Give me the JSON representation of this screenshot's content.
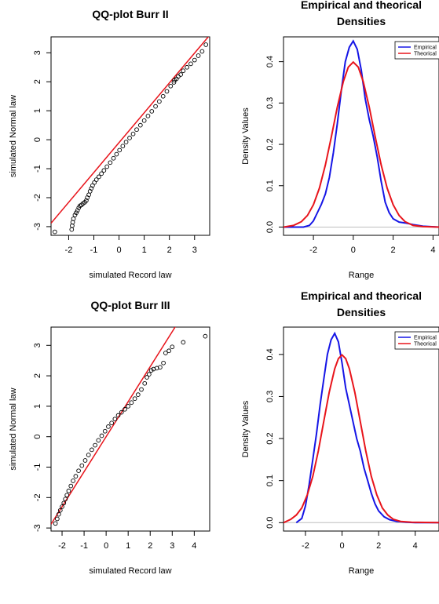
{
  "chart_data": [
    {
      "type": "scatter",
      "title": "QQ-plot Burr II",
      "xlabel": "simulated Record law",
      "ylabel": "simulated Normal law",
      "xlim": [
        -2.7,
        3.6
      ],
      "ylim": [
        -3.3,
        3.55
      ],
      "xticks": [
        -2,
        -1,
        0,
        1,
        2,
        3
      ],
      "yticks": [
        -3,
        -2,
        -1,
        0,
        1,
        2,
        3
      ],
      "reference_line": {
        "intercept": -0.1,
        "slope": 1.03,
        "color": "#e8141b"
      },
      "points": [
        [
          -2.55,
          -3.18
        ],
        [
          -1.88,
          -3.1
        ],
        [
          -1.86,
          -2.97
        ],
        [
          -1.84,
          -2.85
        ],
        [
          -1.81,
          -2.73
        ],
        [
          -1.75,
          -2.6
        ],
        [
          -1.7,
          -2.52
        ],
        [
          -1.65,
          -2.44
        ],
        [
          -1.6,
          -2.35
        ],
        [
          -1.55,
          -2.28
        ],
        [
          -1.49,
          -2.25
        ],
        [
          -1.43,
          -2.2
        ],
        [
          -1.36,
          -2.16
        ],
        [
          -1.3,
          -2.1
        ],
        [
          -1.26,
          -2.0
        ],
        [
          -1.2,
          -1.9
        ],
        [
          -1.15,
          -1.78
        ],
        [
          -1.1,
          -1.68
        ],
        [
          -1.05,
          -1.58
        ],
        [
          -0.98,
          -1.48
        ],
        [
          -0.9,
          -1.38
        ],
        [
          -0.8,
          -1.28
        ],
        [
          -0.7,
          -1.17
        ],
        [
          -0.6,
          -1.06
        ],
        [
          -0.48,
          -0.93
        ],
        [
          -0.35,
          -0.79
        ],
        [
          -0.22,
          -0.64
        ],
        [
          -0.1,
          -0.5
        ],
        [
          0.02,
          -0.36
        ],
        [
          0.15,
          -0.22
        ],
        [
          0.28,
          -0.08
        ],
        [
          0.42,
          0.06
        ],
        [
          0.56,
          0.2
        ],
        [
          0.7,
          0.35
        ],
        [
          0.85,
          0.5
        ],
        [
          1.0,
          0.66
        ],
        [
          1.15,
          0.82
        ],
        [
          1.3,
          0.98
        ],
        [
          1.45,
          1.15
        ],
        [
          1.6,
          1.32
        ],
        [
          1.75,
          1.5
        ],
        [
          1.9,
          1.67
        ],
        [
          2.05,
          1.85
        ],
        [
          2.18,
          1.98
        ],
        [
          2.2,
          2.05
        ],
        [
          2.28,
          2.1
        ],
        [
          2.35,
          2.18
        ],
        [
          2.45,
          2.25
        ],
        [
          2.55,
          2.38
        ],
        [
          2.7,
          2.5
        ],
        [
          2.85,
          2.62
        ],
        [
          3.0,
          2.75
        ],
        [
          3.15,
          2.9
        ],
        [
          3.3,
          3.05
        ],
        [
          3.45,
          3.28
        ]
      ]
    },
    {
      "type": "line",
      "title": "Empirical and theorical\nDensities",
      "xlabel": "Range",
      "ylabel": "Density Values",
      "xlim": [
        -3.5,
        4.3
      ],
      "ylim": [
        -0.02,
        0.46
      ],
      "xticks": [
        -2,
        0,
        2,
        4
      ],
      "yticks": [
        0.0,
        0.1,
        0.2,
        0.3,
        0.4
      ],
      "legend": {
        "position": "top-right"
      },
      "series": [
        {
          "name": "Empirical",
          "color": "#1515e6",
          "points": [
            [
              -3.5,
              0.0
            ],
            [
              -2.5,
              0.0
            ],
            [
              -2.2,
              0.004
            ],
            [
              -2.0,
              0.015
            ],
            [
              -1.8,
              0.035
            ],
            [
              -1.6,
              0.055
            ],
            [
              -1.4,
              0.08
            ],
            [
              -1.2,
              0.12
            ],
            [
              -1.0,
              0.18
            ],
            [
              -0.8,
              0.25
            ],
            [
              -0.6,
              0.33
            ],
            [
              -0.4,
              0.4
            ],
            [
              -0.2,
              0.435
            ],
            [
              0.0,
              0.45
            ],
            [
              0.2,
              0.43
            ],
            [
              0.4,
              0.38
            ],
            [
              0.6,
              0.31
            ],
            [
              0.8,
              0.26
            ],
            [
              1.0,
              0.22
            ],
            [
              1.2,
              0.17
            ],
            [
              1.4,
              0.11
            ],
            [
              1.6,
              0.06
            ],
            [
              1.8,
              0.035
            ],
            [
              2.0,
              0.02
            ],
            [
              2.3,
              0.012
            ],
            [
              2.6,
              0.01
            ],
            [
              3.0,
              0.006
            ],
            [
              3.5,
              0.002
            ],
            [
              4.3,
              0.0
            ]
          ]
        },
        {
          "name": "Theorical",
          "color": "#e8141b",
          "points": [
            [
              -3.5,
              0.0
            ],
            [
              -3.0,
              0.004
            ],
            [
              -2.6,
              0.013
            ],
            [
              -2.3,
              0.028
            ],
            [
              -2.0,
              0.054
            ],
            [
              -1.7,
              0.094
            ],
            [
              -1.4,
              0.15
            ],
            [
              -1.1,
              0.218
            ],
            [
              -0.8,
              0.29
            ],
            [
              -0.5,
              0.352
            ],
            [
              -0.25,
              0.387
            ],
            [
              0.0,
              0.399
            ],
            [
              0.25,
              0.387
            ],
            [
              0.5,
              0.352
            ],
            [
              0.8,
              0.29
            ],
            [
              1.1,
              0.218
            ],
            [
              1.4,
              0.15
            ],
            [
              1.7,
              0.094
            ],
            [
              2.0,
              0.054
            ],
            [
              2.3,
              0.028
            ],
            [
              2.6,
              0.013
            ],
            [
              3.0,
              0.004
            ],
            [
              3.5,
              0.001
            ],
            [
              4.3,
              0.0
            ]
          ]
        }
      ]
    },
    {
      "type": "scatter",
      "title": "QQ-plot Burr III",
      "xlabel": "simulated Record law",
      "ylabel": "simulated Normal law",
      "xlim": [
        -2.5,
        4.7
      ],
      "ylim": [
        -3.1,
        3.6
      ],
      "xticks": [
        -2,
        -1,
        0,
        1,
        2,
        3,
        4
      ],
      "yticks": [
        -3,
        -2,
        -1,
        0,
        1,
        2,
        3
      ],
      "reference_line": {
        "intercept": 0.0,
        "slope": 1.15,
        "color": "#e8141b"
      },
      "points": [
        [
          -2.3,
          -2.85
        ],
        [
          -2.22,
          -2.7
        ],
        [
          -2.15,
          -2.55
        ],
        [
          -2.08,
          -2.42
        ],
        [
          -2.0,
          -2.3
        ],
        [
          -1.92,
          -2.18
        ],
        [
          -1.85,
          -2.05
        ],
        [
          -1.78,
          -1.92
        ],
        [
          -1.7,
          -1.78
        ],
        [
          -1.6,
          -1.62
        ],
        [
          -1.5,
          -1.45
        ],
        [
          -1.38,
          -1.3
        ],
        [
          -1.25,
          -1.12
        ],
        [
          -1.1,
          -0.95
        ],
        [
          -0.95,
          -0.78
        ],
        [
          -0.8,
          -0.6
        ],
        [
          -0.65,
          -0.43
        ],
        [
          -0.5,
          -0.28
        ],
        [
          -0.35,
          -0.12
        ],
        [
          -0.2,
          0.03
        ],
        [
          -0.05,
          0.18
        ],
        [
          0.1,
          0.33
        ],
        [
          0.25,
          0.45
        ],
        [
          0.4,
          0.58
        ],
        [
          0.55,
          0.7
        ],
        [
          0.7,
          0.8
        ],
        [
          0.85,
          0.9
        ],
        [
          1.0,
          1.0
        ],
        [
          1.15,
          1.12
        ],
        [
          1.3,
          1.25
        ],
        [
          1.45,
          1.38
        ],
        [
          1.6,
          1.55
        ],
        [
          1.75,
          1.75
        ],
        [
          1.85,
          1.95
        ],
        [
          1.95,
          2.05
        ],
        [
          2.05,
          2.18
        ],
        [
          2.15,
          2.22
        ],
        [
          2.3,
          2.25
        ],
        [
          2.45,
          2.28
        ],
        [
          2.6,
          2.42
        ],
        [
          2.7,
          2.75
        ],
        [
          2.85,
          2.82
        ],
        [
          3.0,
          2.95
        ],
        [
          3.5,
          3.1
        ],
        [
          4.5,
          3.3
        ]
      ]
    },
    {
      "type": "line",
      "title": "Empirical and theorical\nDensities",
      "xlabel": "Range",
      "ylabel": "Density Values",
      "xlim": [
        -3.2,
        5.3
      ],
      "ylim": [
        -0.02,
        0.465
      ],
      "xticks": [
        -2,
        0,
        2,
        4
      ],
      "yticks": [
        0.0,
        0.1,
        0.2,
        0.3,
        0.4
      ],
      "legend": {
        "position": "top-right"
      },
      "series": [
        {
          "name": "Empirical",
          "color": "#1515e6",
          "points": [
            [
              -2.5,
              0.0
            ],
            [
              -2.2,
              0.01
            ],
            [
              -2.0,
              0.04
            ],
            [
              -1.8,
              0.09
            ],
            [
              -1.6,
              0.15
            ],
            [
              -1.4,
              0.21
            ],
            [
              -1.2,
              0.28
            ],
            [
              -1.0,
              0.34
            ],
            [
              -0.8,
              0.4
            ],
            [
              -0.6,
              0.435
            ],
            [
              -0.4,
              0.45
            ],
            [
              -0.2,
              0.43
            ],
            [
              0.0,
              0.38
            ],
            [
              0.2,
              0.32
            ],
            [
              0.4,
              0.28
            ],
            [
              0.6,
              0.24
            ],
            [
              0.8,
              0.2
            ],
            [
              1.0,
              0.17
            ],
            [
              1.2,
              0.13
            ],
            [
              1.4,
              0.1
            ],
            [
              1.6,
              0.07
            ],
            [
              1.8,
              0.045
            ],
            [
              2.0,
              0.028
            ],
            [
              2.3,
              0.014
            ],
            [
              2.6,
              0.007
            ],
            [
              3.0,
              0.003
            ],
            [
              3.5,
              0.001
            ],
            [
              4.0,
              0.0
            ],
            [
              5.3,
              0.0
            ]
          ]
        },
        {
          "name": "Theorical",
          "color": "#e8141b",
          "points": [
            [
              -3.2,
              0.0
            ],
            [
              -2.8,
              0.008
            ],
            [
              -2.5,
              0.018
            ],
            [
              -2.2,
              0.035
            ],
            [
              -1.9,
              0.066
            ],
            [
              -1.6,
              0.11
            ],
            [
              -1.3,
              0.17
            ],
            [
              -1.0,
              0.24
            ],
            [
              -0.7,
              0.31
            ],
            [
              -0.4,
              0.366
            ],
            [
              -0.2,
              0.39
            ],
            [
              0.0,
              0.399
            ],
            [
              0.2,
              0.39
            ],
            [
              0.4,
              0.366
            ],
            [
              0.7,
              0.31
            ],
            [
              1.0,
              0.24
            ],
            [
              1.3,
              0.17
            ],
            [
              1.6,
              0.11
            ],
            [
              1.9,
              0.066
            ],
            [
              2.2,
              0.035
            ],
            [
              2.5,
              0.018
            ],
            [
              2.8,
              0.008
            ],
            [
              3.2,
              0.003
            ],
            [
              3.8,
              0.001
            ],
            [
              5.3,
              0.0
            ]
          ]
        }
      ]
    }
  ]
}
